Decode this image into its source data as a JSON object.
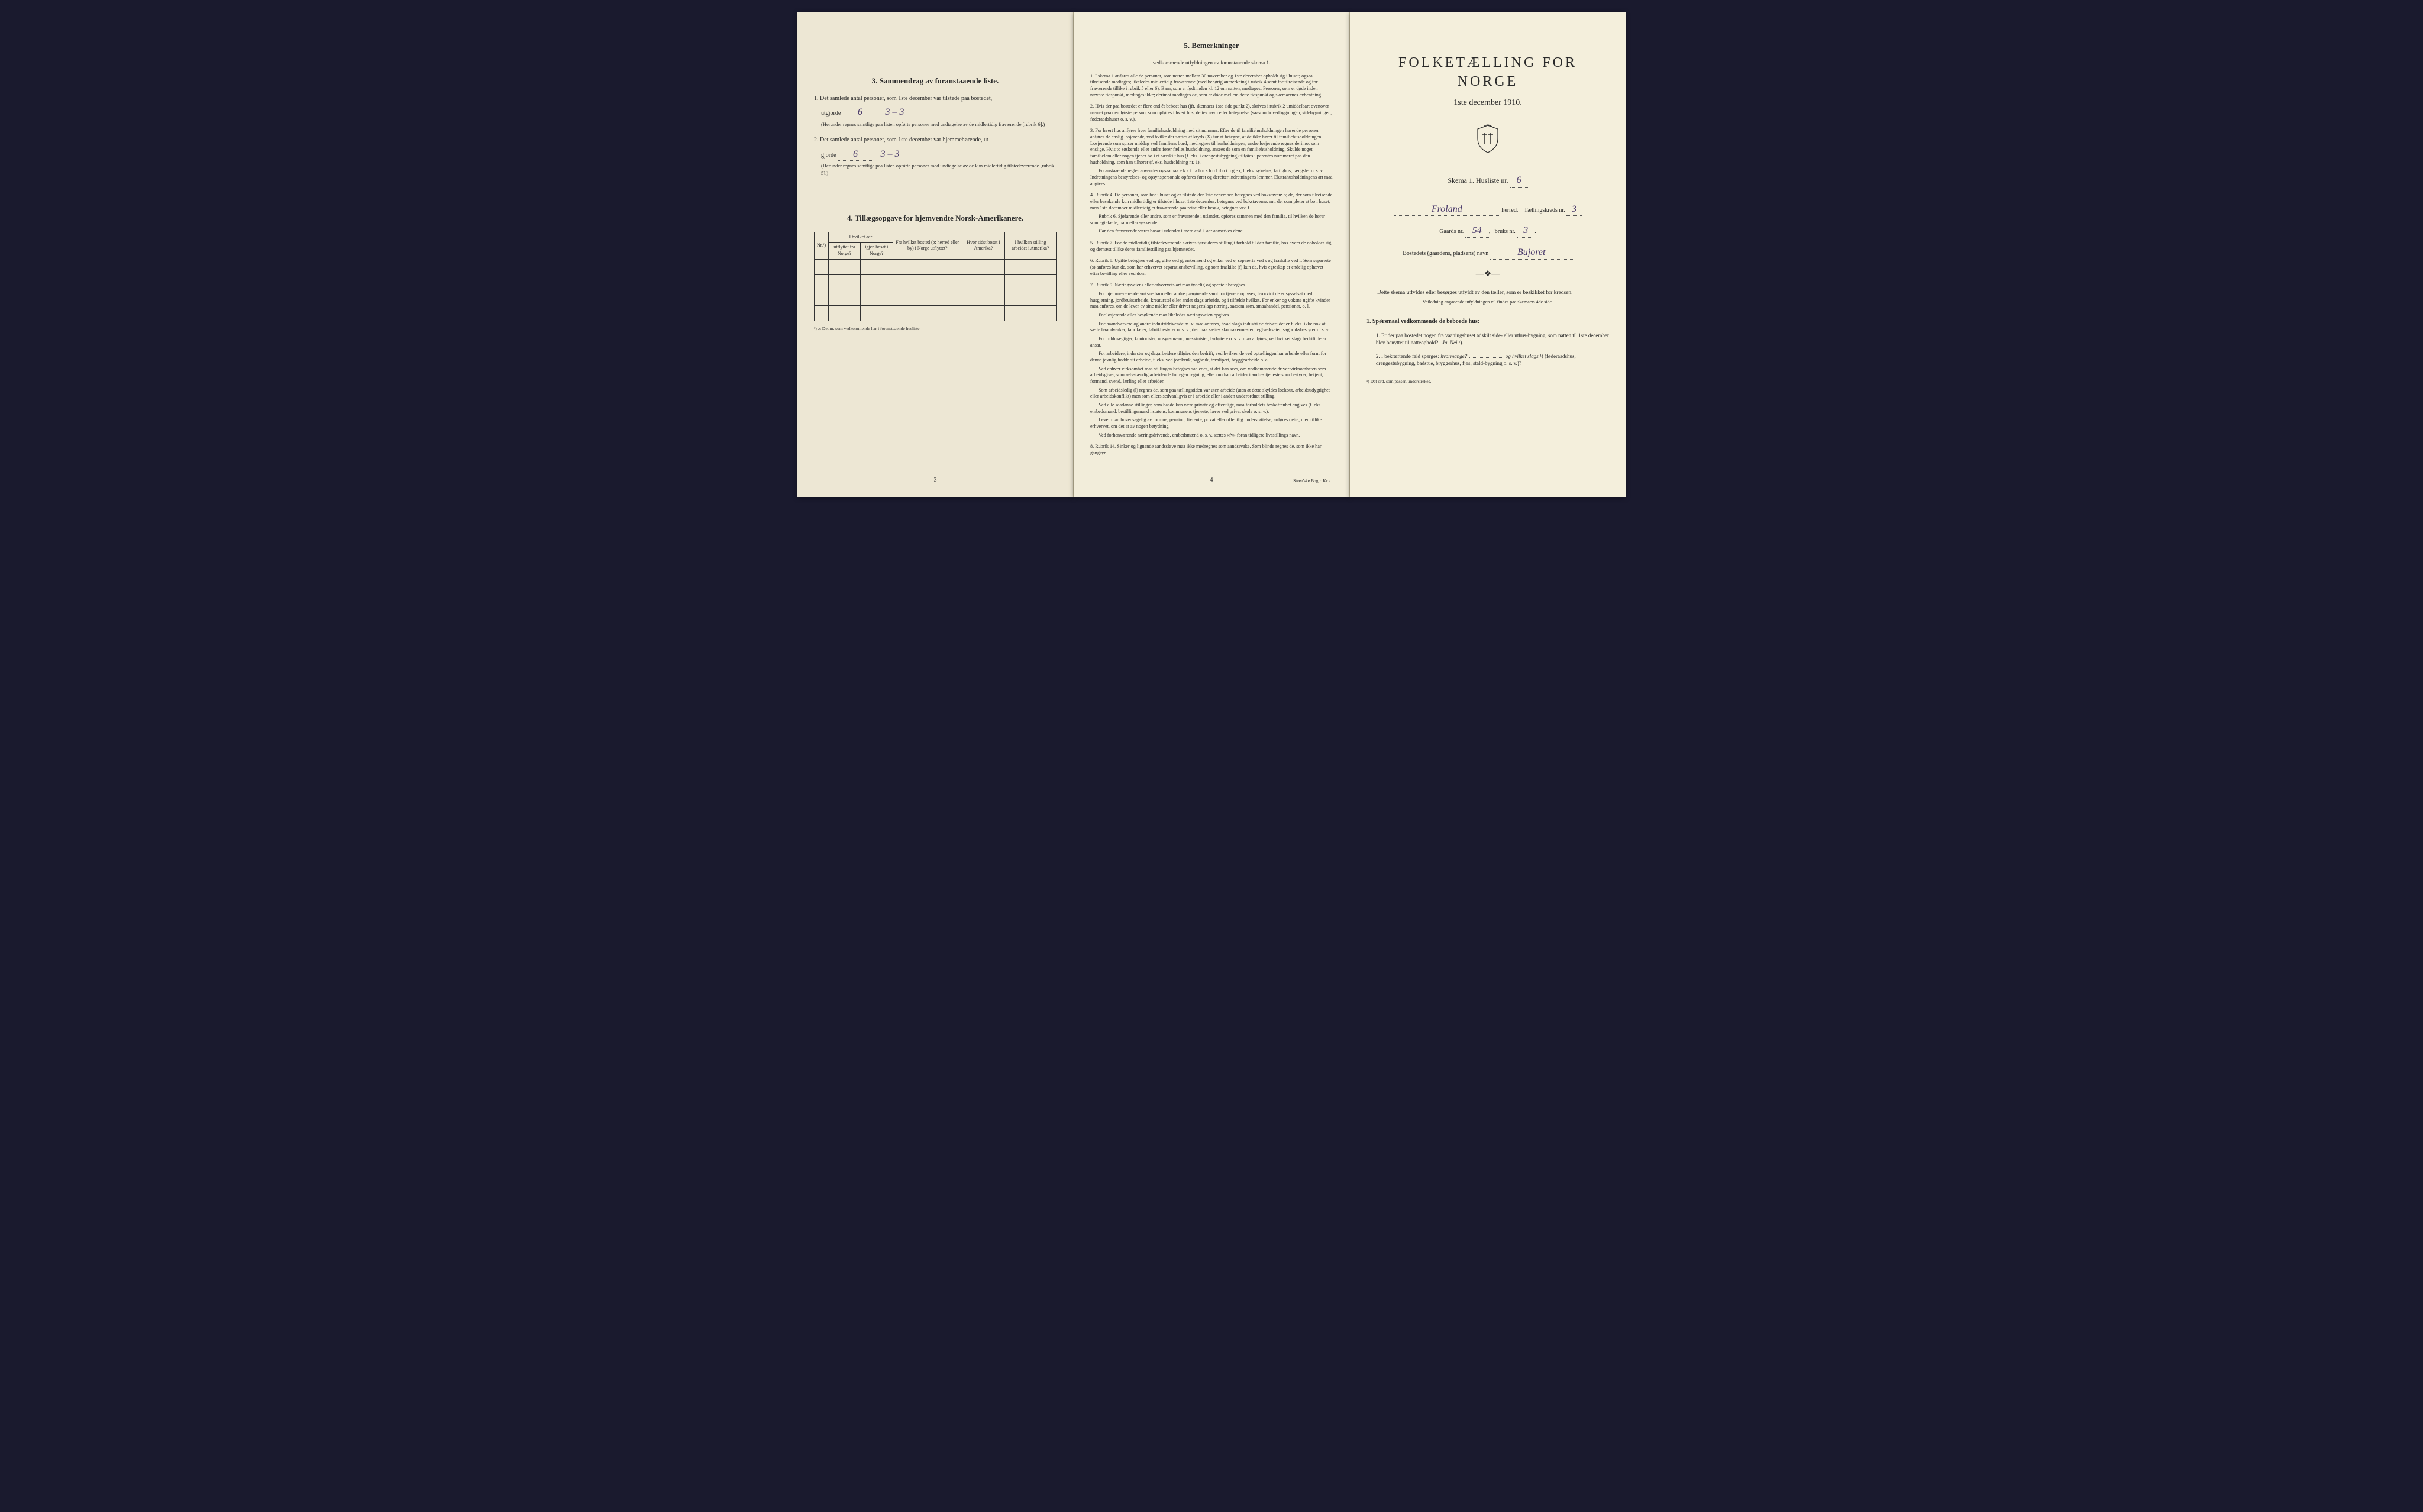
{
  "colors": {
    "page_left": "#ede7d4",
    "page_middle": "#f2edda",
    "page_right": "#f4efdc",
    "text": "#2a2a2a",
    "handwritten": "#4a3a6a",
    "border": "#333333"
  },
  "left": {
    "section3_heading": "3.   Sammendrag av foranstaaende liste.",
    "item1_num": "1.",
    "item1_text": "Det samlede antal personer, som 1ste december var tilstede paa bostedet,",
    "item1_utgjorde": "utgjorde",
    "item1_value": "6",
    "item1_handnote": "3 – 3",
    "item1_paren": "(Herunder regnes samtlige paa listen opførte personer med undtagelse av de midlertidig fraværende [rubrik 6].)",
    "item2_num": "2.",
    "item2_text": "Det samlede antal personer, som 1ste december var hjemmehørende, ut-",
    "item2_gjorde": "gjorde",
    "item2_value": "6",
    "item2_handnote": "3 – 3",
    "item2_paren": "(Herunder regnes samtlige paa listen opførte personer med undtagelse av de kun midlertidig tilstedeværende [rubrik 5].)",
    "section4_heading": "4.   Tillægsopgave for hjemvendte Norsk-Amerikanere.",
    "table": {
      "header_group1": "I hvilket aar",
      "col1": "Nr.¹)",
      "col2": "utflyttet fra Norge?",
      "col3": "igjen bosat i Norge?",
      "col4": "Fra hvilket bosted (ɔ: herred eller by) i Norge utflyttet?",
      "col5": "Hvor sidst bosat i Amerika?",
      "col6": "I hvilken stilling arbeidet i Amerika?",
      "empty_rows": 4
    },
    "footnote": "¹) ɔ: Det nr. som vedkommende har i foranstaaende husliste.",
    "page_num": "3"
  },
  "middle": {
    "heading": "5.   Bemerkninger",
    "subheading": "vedkommende utfyldningen av foranstaaende skema 1.",
    "rules": [
      {
        "n": "1.",
        "text": "I skema 1 anføres alle de personer, som natten mellem 30 november og 1ste december opholdt sig i huset; ogsaa tilreisende medtages; likeledes midlertidig fraværende (med behørig anmerkning i rubrik 4 samt for tilreisende og for fraværende tillike i rubrik 5 eller 6). Barn, som er født inden kl. 12 om natten, medtages. Personer, som er døde inden nævnte tidspunkt, medtages ikke; derimot medtages de, som er døde mellem dette tidspunkt og skemaernes avhentning."
      },
      {
        "n": "2.",
        "text": "Hvis der paa bostedet er flere end ét beboet hus (jfr. skemaets 1ste side punkt 2), skrives i rubrik 2 umiddelbart ovenover navnet paa den første person, som opføres i hvert hus, dettes navn eller betegnelse (saasom hovedbygningen, sidebygningen, føderaadshuset o. s. v.)."
      },
      {
        "n": "3.",
        "text": "For hvert hus anføres hver familiehusholdning med sit nummer. Efter de til familiehusholdningen hørende personer anføres de enslig losjerende, ved hvilke der sættes et kryds (X) for at betegne, at de ikke hører til familiehusholdningen. Losjerende som spiser middag ved familiens bord, medregnes til husholdningen; andre losjerende regnes derimot som enslige. Hvis to søskende eller andre fører fælles husholdning, ansees de som en familiehusholdning. Skulde noget familielem eller nogen tjener bo i et særskilt hus (f. eks. i drengestubygning) tilføies i parentes nummeret paa den husholdning, som han tilhører (f. eks. husholdning nr. 1).",
        "extra": [
          "Foranstaaende regler anvendes ogsaa paa e k s t r a h u s h o l d n i n g e r, f. eks. sykehus, fattighus, fængsler o. s. v. Indretningens bestyrelses- og opsynspersonale opføres først og derefter indretningens lemmer. Ekstrahusholdningens art maa angives."
        ]
      },
      {
        "n": "4.",
        "text": "Rubrik 4. De personer, som bor i huset og er tilstede der 1ste december, betegnes ved bokstaven: b; de, der som tilreisende eller besøkende kun midlertidig er tilstede i huset 1ste december, betegnes ved bokstaverne: mt; de, som pleier at bo i huset, men 1ste december midlertidig er fraværende paa reise eller besøk, betegnes ved f.",
        "extra": [
          "Rubrik 6. Sjøfarende eller andre, som er fraværende i utlandet, opføres sammen med den familie, til hvilken de hører som egtefælle, barn eller søskende.",
          "Har den fraværende været bosat i utlandet i mere end 1 aar anmerkes dette."
        ]
      },
      {
        "n": "5.",
        "text": "Rubrik 7. For de midlertidig tilstedeværende skrives først deres stilling i forhold til den familie, hos hvem de opholder sig, og dernæst tillike deres familiestilling paa hjemstedet."
      },
      {
        "n": "6.",
        "text": "Rubrik 8. Ugifte betegnes ved ug, gifte ved g, enkemænd og enker ved e, separerte ved s og fraskilte ved f. Som separerte (s) anføres kun de, som har erhvervet separationsbevilling, og som fraskilte (f) kun de, hvis egteskap er endelig ophævet efter bevilling eller ved dom."
      },
      {
        "n": "7.",
        "text": "Rubrik 9. Næringsveiens eller erhvervets art maa tydelig og specielt betegnes.",
        "extra": [
          "For hjemmeværende voksne barn eller andre paarørende samt for tjenere oplyses, hvorvidt de er sysselsat med husgjerning, jordbruksarbeide, kreaturstel eller andet slags arbeide, og i tilfælde hvilket. For enker og voksne ugifte kvinder maa anføres, om de lever av sine midler eller driver nogenslags næring, saasom søm, smaahandel, pensionat, o. l.",
          "For losjerende eller besøkende maa likeledes næringsveien opgives.",
          "For haandverkere og andre industridrivende m. v. maa anføres, hvad slags industri de driver; det er f. eks. ikke nok at sætte haandverker, fabrikeier, fabrikbestyrer o. s. v.; der maa sættes skomakermester, teglverkseier, sagbruksbestyrer o. s. v.",
          "For fuldmægtiger, kontorister, opsynsmænd, maskinister, fyrbøtere o. s. v. maa anføres, ved hvilket slags bedrift de er ansat.",
          "For arbeidere, inderster og dagarbeidere tilføies den bedrift, ved hvilken de ved optællingen har arbeide eller forut for denne jevnlig hadde sit arbeide, f. eks. ved jordbruk, sagbruk, træsliperi, bryggearbeide o. a.",
          "Ved enhver virksomhet maa stillingen betegnes saaledes, at det kan sees, om vedkommende driver virksomheten som arbeidsgiver, som selvstændig arbeidende for egen regning, eller om han arbeider i andres tjeneste som bestyrer, betjent, formand, svend, lærling eller arbeider.",
          "Som arbeidsledig (l) regnes de, som paa tællingstiden var uten arbeide (uten at dette skyldes lockout, arbeidsudygtighet eller arbeidskonflikt) men som ellers sedvanligvis er i arbeide eller i anden underordnet stilling.",
          "Ved alle saadanne stillinger, som baade kan være private og offentlige, maa forholdets beskaffenhet angives (f. eks. embedsmand, bestillingsmand i statens, kommunens tjeneste, lærer ved privat skole o. s. v.).",
          "Lever man hovedsagelig av formue, pension, livrente, privat eller offentlig understøttelse, anføres dette, men tillike erhvervet, om det er av nogen betydning.",
          "Ved forhenværende næringsdrivende, embedsmænd o. s. v. sættes «fv» foran tidligere livsstillings navn."
        ]
      },
      {
        "n": "8.",
        "text": "Rubrik 14. Sinker og lignende aandssløve maa ikke medregnes som aandssvake. Som blinde regnes de, som ikke har gangsyn."
      }
    ],
    "page_num": "4",
    "printer": "Steen'ske Bogtr. Kr.a."
  },
  "right": {
    "title": "FOLKETÆLLING FOR NORGE",
    "date": "1ste december 1910.",
    "skema_label": "Skema 1.  Husliste nr.",
    "husliste_nr": "6",
    "herred_value": "Froland",
    "herred_label": "herred.",
    "taellingskreds_label": "Tællingskreds nr.",
    "taellingskreds_nr": "3",
    "gaards_label": "Gaards nr.",
    "gaards_nr": "54",
    "bruks_label": "bruks nr.",
    "bruks_nr": "3",
    "bosted_label": "Bostedets (gaardens, pladsens) navn",
    "bosted_value": "Bujoret",
    "instr": "Dette skema utfyldes eller besørges utfyldt av den tæller, som er beskikket for kredsen.",
    "instr_sub": "Veiledning angaaende utfyldningen vil findes paa skemaets 4de side.",
    "q_heading": "1. Spørsmaal vedkommende de beboede hus:",
    "q1_num": "1.",
    "q1_text": "Er der paa bostedet nogen fra vaaningshuset adskilt side- eller uthus-bygning, som natten til 1ste december blev benyttet til natteophold?",
    "q1_ja": "Ja",
    "q1_nei": "Nei",
    "q1_sup": "¹).",
    "q2_num": "2.",
    "q2_text_a": "I bekræftende fald spørges: ",
    "q2_text_b": "hvormange?",
    "q2_text_c": "og hvilket slags",
    "q2_sup": "¹)",
    "q2_text_d": "(føderaadshus, drengestubygning, badstue, bryggerhus, fjøs, stald-bygning o. s. v.)?",
    "footnote": "¹) Det ord, som passer, understrekes."
  }
}
